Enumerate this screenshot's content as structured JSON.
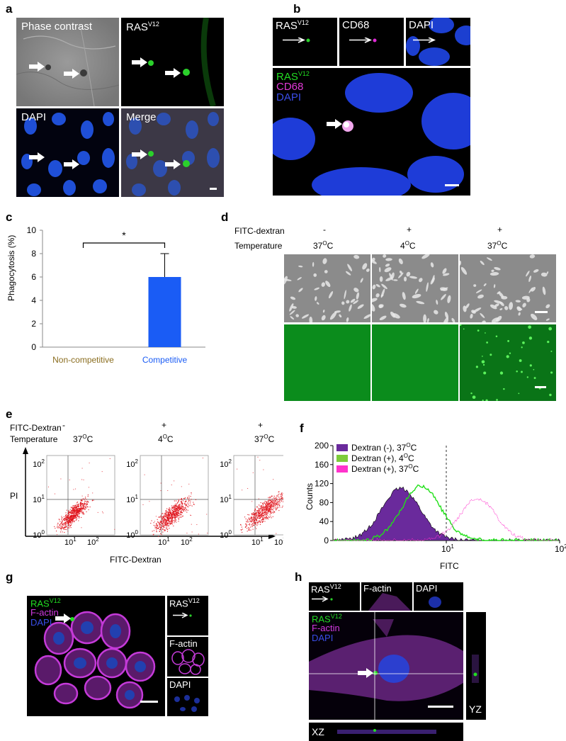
{
  "panel_a": {
    "letter": "a",
    "phase": "Phase contrast",
    "ras": "RAS",
    "ras_sup": "V12",
    "dapi": "DAPI",
    "merge": "Merge"
  },
  "panel_b": {
    "letter": "b",
    "ras": "RAS",
    "ras_sup": "V12",
    "cd68": "CD68",
    "dapi": "DAPI",
    "big_ras": "RAS",
    "big_ras_sup": "V12",
    "big_cd68": "CD68",
    "big_dapi": "DAPI"
  },
  "panel_c": {
    "letter": "c",
    "ylabel": "Phagocytosis (%)",
    "sig": "*",
    "yticks": [
      "0",
      "2",
      "4",
      "6",
      "8",
      "10"
    ]
  },
  "chart_data": [
    {
      "type": "bar",
      "categories": [
        "Non-competitive",
        "Competitive"
      ],
      "values": [
        0,
        6
      ],
      "error": [
        0,
        2
      ],
      "ylabel": "Phagocytosis (%)",
      "ylim": [
        0,
        10
      ],
      "colors": [
        "#8a6d1f",
        "#1a5cf5"
      ]
    }
  ],
  "panel_d": {
    "letter": "d",
    "row1_label": "FITC-dextran",
    "row2_label": "Temperature",
    "cols": [
      {
        "fitc": "-",
        "temp": "37",
        "unit": "C"
      },
      {
        "fitc": "+",
        "temp": "4",
        "unit": "C"
      },
      {
        "fitc": "+",
        "temp": "37",
        "unit": "C"
      }
    ],
    "deg": "O"
  },
  "panel_e": {
    "letter": "e",
    "row1_label": "FITC-Dextran",
    "row2_label": "Temperature",
    "cols": [
      {
        "fitc": "-",
        "temp": "37",
        "unit": "C"
      },
      {
        "fitc": "+",
        "temp": "4",
        "unit": "C"
      },
      {
        "fitc": "+",
        "temp": "37",
        "unit": "C"
      }
    ],
    "deg": "O",
    "ylabel": "PI",
    "xlabel": "FITC-Dextran",
    "ten": "10",
    "exps": [
      "0",
      "1",
      "2"
    ]
  },
  "panel_f": {
    "letter": "f",
    "ylabel": "Counts",
    "xlabel": "FITC",
    "yticks": [
      "0",
      "40",
      "80",
      "120",
      "160",
      "200"
    ],
    "ten": "10",
    "xtick_one": "1",
    "legend": [
      {
        "text": "Dextran (-), 37",
        "unit": "C",
        "color": "#6a2a9c"
      },
      {
        "text": "Dextran (+), 4",
        "unit": "C",
        "color": "#7dcc3a"
      },
      {
        "text": "Dextran (+), 37",
        "unit": "C",
        "color": "#ff33cc"
      }
    ],
    "deg": "O"
  },
  "panel_g": {
    "letter": "g",
    "ras": "RAS",
    "ras_sup": "V12",
    "factin": "F-actin",
    "dapi": "DAPI"
  },
  "panel_h": {
    "letter": "h",
    "ras": "RAS",
    "ras_sup": "V12",
    "factin": "F-actin",
    "dapi": "DAPI",
    "yz": "YZ",
    "xz": "XZ"
  }
}
